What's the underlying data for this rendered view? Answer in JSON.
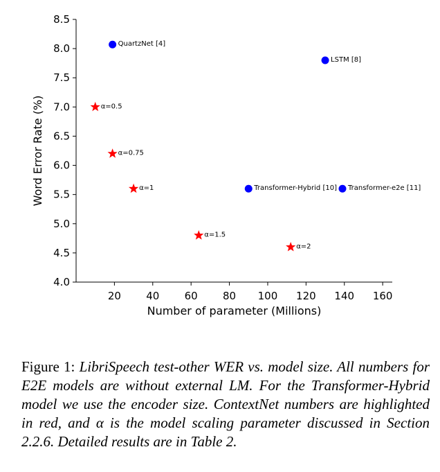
{
  "chart_data": {
    "type": "scatter",
    "title": "",
    "xlabel": "Number of parameter (Millions)",
    "ylabel": "Word Error Rate (%)",
    "xlim": [
      0,
      165
    ],
    "ylim": [
      4.0,
      8.5
    ],
    "xticks": [
      20,
      40,
      60,
      80,
      100,
      120,
      140,
      160
    ],
    "yticks": [
      4.0,
      4.5,
      5.0,
      5.5,
      6.0,
      6.5,
      7.0,
      7.5,
      8.0,
      8.5
    ],
    "grid": false,
    "series": [
      {
        "marker": "circle",
        "color": "#0000ff",
        "points": [
          {
            "label": "QuartzNet [4]",
            "x": 19,
            "y": 8.07
          },
          {
            "label": "LSTM [8]",
            "x": 130,
            "y": 7.8
          },
          {
            "label": "Transformer-Hybrid [10]",
            "x": 90,
            "y": 5.6
          },
          {
            "label": "Transformer-e2e [11]",
            "x": 139,
            "y": 5.6
          }
        ]
      },
      {
        "marker": "star",
        "color": "#ff0000",
        "points": [
          {
            "label": "α=0.5",
            "x": 10,
            "y": 7.0
          },
          {
            "label": "α=0.75",
            "x": 19,
            "y": 6.2
          },
          {
            "label": "α=1",
            "x": 30,
            "y": 5.6
          },
          {
            "label": "α=1.5",
            "x": 64,
            "y": 4.8
          },
          {
            "label": "α=2",
            "x": 112,
            "y": 4.6
          }
        ]
      }
    ]
  },
  "caption": {
    "prefix": "Figure 1: ",
    "body": "LibriSpeech test-other WER vs. model size. All numbers for E2E models are without external LM. For the Transformer-Hybrid model we use the encoder size. ContextNet numbers are highlighted in red, and α is the model scaling parameter discussed in Section 2.2.6. Detailed results are in Table 2."
  }
}
